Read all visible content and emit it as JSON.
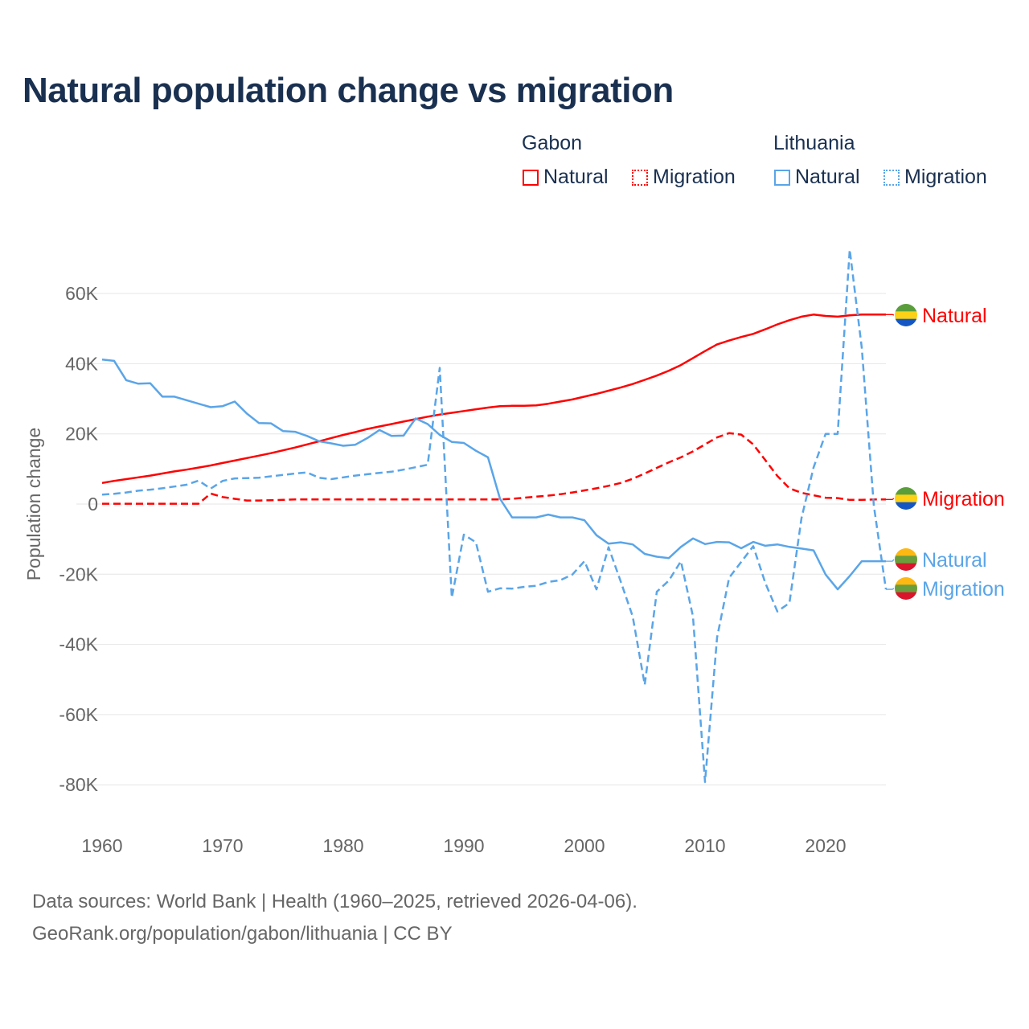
{
  "title": "Natural population change vs migration",
  "legend": {
    "groups": [
      {
        "name": "Gabon",
        "items": [
          "Natural",
          "Migration"
        ],
        "color": "#ff0000"
      },
      {
        "name": "Lithuania",
        "items": [
          "Natural",
          "Migration"
        ],
        "color": "#5aa5e8"
      }
    ]
  },
  "footer": {
    "line1": "Data sources: World Bank | Health (1960–2025, retrieved 2026-04-06).",
    "line2": "GeoRank.org/population/gabon/lithuania | CC BY"
  },
  "chart_data": {
    "type": "line",
    "title": "Natural population change vs migration",
    "xlabel": "",
    "ylabel": "Population change",
    "xlim": [
      1960,
      2025
    ],
    "ylim": [
      -90000,
      70000
    ],
    "x_ticks": [
      "1960",
      "1970",
      "1980",
      "1990",
      "2000",
      "2010",
      "2020"
    ],
    "y_ticks": [
      {
        "v": 60000,
        "l": "60K"
      },
      {
        "v": 40000,
        "l": "40K"
      },
      {
        "v": 20000,
        "l": "20K"
      },
      {
        "v": 0,
        "l": "0"
      },
      {
        "v": -20000,
        "l": "-20K"
      },
      {
        "v": -40000,
        "l": "-40K"
      },
      {
        "v": -60000,
        "l": "-60K"
      },
      {
        "v": -80000,
        "l": "-80K"
      }
    ],
    "grid": true,
    "legend_position": "top-right",
    "x_start": 1960,
    "series": [
      {
        "name": "Gabon Natural",
        "label": "Natural",
        "color": "#ff0000",
        "dash": false,
        "flag": "gabon",
        "values_k": [
          6,
          6.6,
          7.1,
          7.6,
          8.1,
          8.7,
          9.3,
          9.8,
          10.4,
          11.0,
          11.7,
          12.4,
          13.1,
          13.8,
          14.5,
          15.3,
          16.1,
          17.0,
          17.9,
          18.8,
          19.7,
          20.5,
          21.4,
          22.1,
          22.8,
          23.5,
          24.2,
          24.9,
          25.5,
          26.0,
          26.5,
          27.0,
          27.5,
          27.9,
          28.0,
          28.0,
          28.1,
          28.6,
          29.2,
          29.8,
          30.6,
          31.4,
          32.3,
          33.2,
          34.2,
          35.4,
          36.6,
          38.0,
          39.6,
          41.6,
          43.6,
          45.5,
          46.6,
          47.6,
          48.5,
          49.8,
          51.2,
          52.4,
          53.4,
          54.0,
          53.6,
          53.4,
          53.8,
          54.0,
          54.0,
          54.0
        ]
      },
      {
        "name": "Gabon Migration",
        "label": "Migration",
        "color": "#ff0000",
        "dash": true,
        "flag": "gabon",
        "values_k": [
          0.1,
          0.1,
          0.1,
          0.1,
          0.1,
          0.1,
          0.1,
          0.1,
          0.1,
          3.0,
          2.0,
          1.5,
          1.0,
          1.0,
          1.1,
          1.2,
          1.3,
          1.3,
          1.3,
          1.3,
          1.3,
          1.3,
          1.3,
          1.3,
          1.3,
          1.3,
          1.3,
          1.3,
          1.3,
          1.3,
          1.3,
          1.3,
          1.3,
          1.3,
          1.5,
          1.8,
          2.1,
          2.4,
          2.8,
          3.3,
          3.9,
          4.5,
          5.2,
          6.0,
          7.2,
          8.7,
          10.3,
          11.9,
          13.3,
          15.0,
          17.0,
          19.0,
          20.2,
          19.8,
          17.0,
          12.5,
          8.0,
          4.5,
          3.2,
          2.5,
          1.8,
          1.7,
          1.2,
          1.2,
          1.3,
          1.3
        ]
      },
      {
        "name": "Lithuania Natural",
        "label": "Natural",
        "color": "#5aa5e8",
        "dash": false,
        "flag": "lithuania",
        "values_k": [
          41.2,
          40.8,
          35.3,
          34.3,
          34.4,
          30.6,
          30.6,
          29.6,
          28.6,
          27.6,
          27.9,
          29.2,
          25.8,
          23.1,
          23.0,
          20.8,
          20.6,
          19.4,
          17.9,
          17.3,
          16.6,
          16.9,
          18.8,
          21.1,
          19.4,
          19.5,
          24.4,
          22.8,
          19.7,
          17.7,
          17.4,
          15.2,
          13.3,
          1.5,
          -3.8,
          -3.8,
          -3.8,
          -3.0,
          -3.8,
          -3.8,
          -4.6,
          -8.9,
          -11.3,
          -10.9,
          -11.5,
          -14.2,
          -15.0,
          -15.4,
          -12.2,
          -9.8,
          -11.4,
          -10.8,
          -10.9,
          -12.6,
          -10.8,
          -11.9,
          -11.5,
          -12.2,
          -12.7,
          -13.2,
          -20.1,
          -24.3,
          -20.5,
          -16.3,
          -16.3,
          -16.3
        ]
      },
      {
        "name": "Lithuania Migration",
        "label": "Migration",
        "color": "#5aa5e8",
        "dash": true,
        "flag": "lithuania",
        "values_k": [
          2.7,
          2.9,
          3.3,
          3.8,
          4.1,
          4.5,
          5.0,
          5.5,
          6.7,
          4.4,
          6.6,
          7.3,
          7.4,
          7.5,
          7.9,
          8.3,
          8.7,
          9.0,
          7.5,
          7.1,
          7.6,
          8.1,
          8.5,
          8.9,
          9.2,
          9.8,
          10.5,
          11.2,
          38.8,
          -26.7,
          -8.7,
          -10.9,
          -25.0,
          -24.0,
          -24.1,
          -23.6,
          -23.3,
          -22.2,
          -21.7,
          -20.1,
          -16.3,
          -24.3,
          -12.3,
          -22.0,
          -32.0,
          -51.5,
          -25.0,
          -21.8,
          -16.3,
          -32.0,
          -79.2,
          -38.0,
          -21.0,
          -16.5,
          -12.0,
          -22.5,
          -30.6,
          -28.2,
          -4.0,
          10.4,
          20.0,
          20.0,
          72.5,
          44.5,
          -0.5,
          -24.3
        ]
      }
    ]
  }
}
